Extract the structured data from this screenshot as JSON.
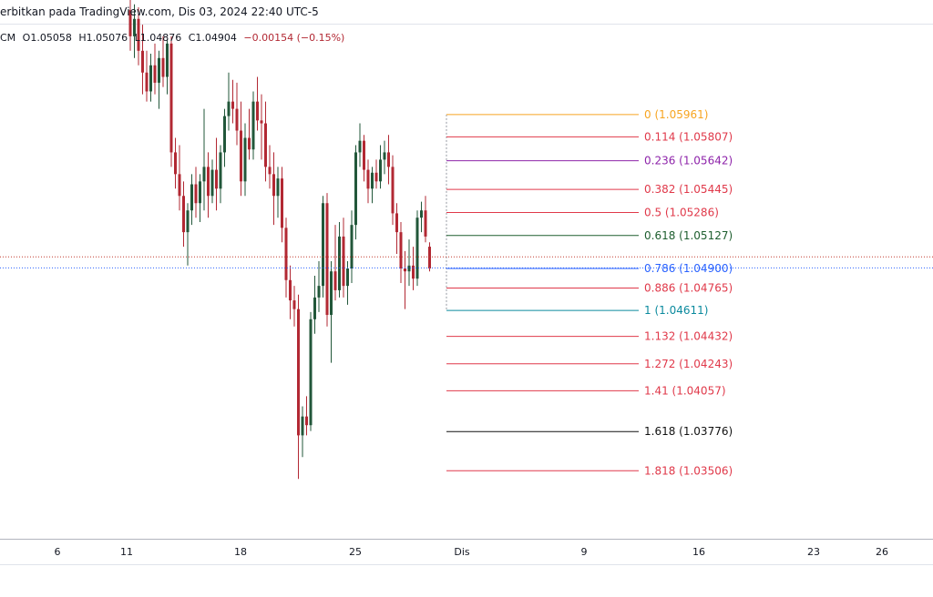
{
  "header": {
    "published": "erbitkan pada TradingView.com, Dis 03, 2024 22:40 UTC-5"
  },
  "ohlc": {
    "prefix": "CM",
    "open": "O1.05058",
    "high": "H1.05076",
    "low": "L1.04876",
    "close": "C1.04904",
    "change": "−0.00154 (−0.15%)"
  },
  "colors": {
    "up": "#22573a",
    "down": "#b22833",
    "current_price_line": "#2962ff",
    "prev_close_line": "#c0392b"
  },
  "chart_data": {
    "type": "candlestick",
    "ylim": [
      1.0305,
      1.0675
    ],
    "current_price": 1.04904,
    "previous_close": 1.0498,
    "x_axis": {
      "ticks": [
        "6",
        "11",
        "18",
        "25",
        "Dis",
        "9",
        "16",
        "23",
        "26"
      ]
    },
    "candles": [
      {
        "o": 1.0668,
        "h": 1.0685,
        "l": 1.064,
        "c": 1.065
      },
      {
        "o": 1.065,
        "h": 1.0672,
        "l": 1.0635,
        "c": 1.0662
      },
      {
        "o": 1.0662,
        "h": 1.067,
        "l": 1.063,
        "c": 1.064
      },
      {
        "o": 1.064,
        "h": 1.0658,
        "l": 1.061,
        "c": 1.0625
      },
      {
        "o": 1.0625,
        "h": 1.064,
        "l": 1.0605,
        "c": 1.0612
      },
      {
        "o": 1.0612,
        "h": 1.0638,
        "l": 1.0605,
        "c": 1.063
      },
      {
        "o": 1.063,
        "h": 1.0645,
        "l": 1.061,
        "c": 1.0618
      },
      {
        "o": 1.0618,
        "h": 1.064,
        "l": 1.06,
        "c": 1.0635
      },
      {
        "o": 1.0635,
        "h": 1.065,
        "l": 1.0615,
        "c": 1.0622
      },
      {
        "o": 1.0622,
        "h": 1.0648,
        "l": 1.061,
        "c": 1.0645
      },
      {
        "o": 1.0645,
        "h": 1.065,
        "l": 1.056,
        "c": 1.057
      },
      {
        "o": 1.057,
        "h": 1.058,
        "l": 1.0545,
        "c": 1.0555
      },
      {
        "o": 1.0555,
        "h": 1.0575,
        "l": 1.053,
        "c": 1.054
      },
      {
        "o": 1.054,
        "h": 1.055,
        "l": 1.0505,
        "c": 1.0515
      },
      {
        "o": 1.0515,
        "h": 1.0535,
        "l": 1.0492,
        "c": 1.053
      },
      {
        "o": 1.053,
        "h": 1.0555,
        "l": 1.052,
        "c": 1.0548
      },
      {
        "o": 1.0548,
        "h": 1.056,
        "l": 1.0525,
        "c": 1.0535
      },
      {
        "o": 1.0535,
        "h": 1.0555,
        "l": 1.0522,
        "c": 1.055
      },
      {
        "o": 1.055,
        "h": 1.06,
        "l": 1.053,
        "c": 1.056
      },
      {
        "o": 1.056,
        "h": 1.057,
        "l": 1.0525,
        "c": 1.054
      },
      {
        "o": 1.054,
        "h": 1.0565,
        "l": 1.0535,
        "c": 1.0558
      },
      {
        "o": 1.0558,
        "h": 1.058,
        "l": 1.053,
        "c": 1.0545
      },
      {
        "o": 1.0545,
        "h": 1.0575,
        "l": 1.0535,
        "c": 1.057
      },
      {
        "o": 1.057,
        "h": 1.06,
        "l": 1.056,
        "c": 1.0595
      },
      {
        "o": 1.0595,
        "h": 1.0625,
        "l": 1.0585,
        "c": 1.0605
      },
      {
        "o": 1.0605,
        "h": 1.062,
        "l": 1.059,
        "c": 1.06
      },
      {
        "o": 1.06,
        "h": 1.0618,
        "l": 1.0575,
        "c": 1.0585
      },
      {
        "o": 1.0585,
        "h": 1.0605,
        "l": 1.054,
        "c": 1.055
      },
      {
        "o": 1.055,
        "h": 1.059,
        "l": 1.054,
        "c": 1.058
      },
      {
        "o": 1.058,
        "h": 1.06,
        "l": 1.0565,
        "c": 1.0572
      },
      {
        "o": 1.0572,
        "h": 1.0612,
        "l": 1.0565,
        "c": 1.0605
      },
      {
        "o": 1.0605,
        "h": 1.0622,
        "l": 1.0585,
        "c": 1.0592
      },
      {
        "o": 1.0592,
        "h": 1.061,
        "l": 1.0565,
        "c": 1.059
      },
      {
        "o": 1.059,
        "h": 1.0605,
        "l": 1.055,
        "c": 1.056
      },
      {
        "o": 1.056,
        "h": 1.0575,
        "l": 1.0545,
        "c": 1.0555
      },
      {
        "o": 1.0555,
        "h": 1.057,
        "l": 1.052,
        "c": 1.054
      },
      {
        "o": 1.054,
        "h": 1.056,
        "l": 1.0525,
        "c": 1.0552
      },
      {
        "o": 1.0552,
        "h": 1.056,
        "l": 1.0508,
        "c": 1.0518
      },
      {
        "o": 1.0518,
        "h": 1.0525,
        "l": 1.047,
        "c": 1.0482
      },
      {
        "o": 1.0482,
        "h": 1.0492,
        "l": 1.0455,
        "c": 1.0468
      },
      {
        "o": 1.0468,
        "h": 1.0478,
        "l": 1.045,
        "c": 1.0462
      },
      {
        "o": 1.0462,
        "h": 1.0472,
        "l": 1.0345,
        "c": 1.0375
      },
      {
        "o": 1.0375,
        "h": 1.0395,
        "l": 1.036,
        "c": 1.0388
      },
      {
        "o": 1.0388,
        "h": 1.0402,
        "l": 1.0375,
        "c": 1.0382
      },
      {
        "o": 1.0382,
        "h": 1.046,
        "l": 1.0378,
        "c": 1.0455
      },
      {
        "o": 1.0455,
        "h": 1.0485,
        "l": 1.0445,
        "c": 1.047
      },
      {
        "o": 1.047,
        "h": 1.0495,
        "l": 1.046,
        "c": 1.0478
      },
      {
        "o": 1.0478,
        "h": 1.054,
        "l": 1.047,
        "c": 1.0535
      },
      {
        "o": 1.0535,
        "h": 1.0542,
        "l": 1.045,
        "c": 1.0458
      },
      {
        "o": 1.0458,
        "h": 1.0495,
        "l": 1.0425,
        "c": 1.0488
      },
      {
        "o": 1.0488,
        "h": 1.052,
        "l": 1.0468,
        "c": 1.0475
      },
      {
        "o": 1.0475,
        "h": 1.0522,
        "l": 1.047,
        "c": 1.0512
      },
      {
        "o": 1.0512,
        "h": 1.0525,
        "l": 1.047,
        "c": 1.0478
      },
      {
        "o": 1.0478,
        "h": 1.0495,
        "l": 1.0465,
        "c": 1.049
      },
      {
        "o": 1.049,
        "h": 1.053,
        "l": 1.048,
        "c": 1.052
      },
      {
        "o": 1.052,
        "h": 1.0575,
        "l": 1.051,
        "c": 1.057
      },
      {
        "o": 1.057,
        "h": 1.059,
        "l": 1.056,
        "c": 1.0578
      },
      {
        "o": 1.0578,
        "h": 1.0582,
        "l": 1.055,
        "c": 1.0558
      },
      {
        "o": 1.0558,
        "h": 1.0565,
        "l": 1.0535,
        "c": 1.0545
      },
      {
        "o": 1.0545,
        "h": 1.056,
        "l": 1.0535,
        "c": 1.0556
      },
      {
        "o": 1.0556,
        "h": 1.0565,
        "l": 1.0545,
        "c": 1.055
      },
      {
        "o": 1.055,
        "h": 1.0575,
        "l": 1.0545,
        "c": 1.0565
      },
      {
        "o": 1.0565,
        "h": 1.0578,
        "l": 1.0555,
        "c": 1.057
      },
      {
        "o": 1.057,
        "h": 1.0582,
        "l": 1.0548,
        "c": 1.056
      },
      {
        "o": 1.056,
        "h": 1.0568,
        "l": 1.052,
        "c": 1.0528
      },
      {
        "o": 1.0528,
        "h": 1.0535,
        "l": 1.05,
        "c": 1.0515
      },
      {
        "o": 1.0515,
        "h": 1.0522,
        "l": 1.048,
        "c": 1.049
      },
      {
        "o": 1.049,
        "h": 1.0502,
        "l": 1.0462,
        "c": 1.0488
      },
      {
        "o": 1.0488,
        "h": 1.051,
        "l": 1.0478,
        "c": 1.0492
      },
      {
        "o": 1.0492,
        "h": 1.0505,
        "l": 1.0475,
        "c": 1.0483
      },
      {
        "o": 1.0483,
        "h": 1.053,
        "l": 1.0478,
        "c": 1.0525
      },
      {
        "o": 1.0525,
        "h": 1.0536,
        "l": 1.0515,
        "c": 1.053
      },
      {
        "o": 1.053,
        "h": 1.054,
        "l": 1.0508,
        "c": 1.0512
      },
      {
        "o": 1.0505,
        "h": 1.0508,
        "l": 1.0488,
        "c": 1.049
      }
    ],
    "fibonacci": {
      "levels": [
        {
          "ratio": "0",
          "price": "1.05961",
          "value": 1.05961,
          "color": "#f7a521"
        },
        {
          "ratio": "0.114",
          "price": "1.05807",
          "value": 1.05807,
          "color": "#e0394a"
        },
        {
          "ratio": "0.236",
          "price": "1.05642",
          "value": 1.05642,
          "color": "#8e24aa"
        },
        {
          "ratio": "0.382",
          "price": "1.05445",
          "value": 1.05445,
          "color": "#e0394a"
        },
        {
          "ratio": "0.5",
          "price": "1.05286",
          "value": 1.05286,
          "color": "#e0394a"
        },
        {
          "ratio": "0.618",
          "price": "1.05127",
          "value": 1.05127,
          "color": "#1e5e2f"
        },
        {
          "ratio": "0.786",
          "price": "1.04900",
          "value": 1.049,
          "color": "#2962ff"
        },
        {
          "ratio": "0.886",
          "price": "1.04765",
          "value": 1.04765,
          "color": "#e0394a"
        },
        {
          "ratio": "1",
          "price": "1.04611",
          "value": 1.04611,
          "color": "#0b8a9e"
        },
        {
          "ratio": "1.132",
          "price": "1.04432",
          "value": 1.04432,
          "color": "#e0394a"
        },
        {
          "ratio": "1.272",
          "price": "1.04243",
          "value": 1.04243,
          "color": "#e0394a"
        },
        {
          "ratio": "1.41",
          "price": "1.04057",
          "value": 1.04057,
          "color": "#e0394a"
        },
        {
          "ratio": "1.618",
          "price": "1.03776",
          "value": 1.03776,
          "color": "#111111"
        },
        {
          "ratio": "1.818",
          "price": "1.03506",
          "value": 1.03506,
          "color": "#e0394a"
        }
      ]
    }
  }
}
